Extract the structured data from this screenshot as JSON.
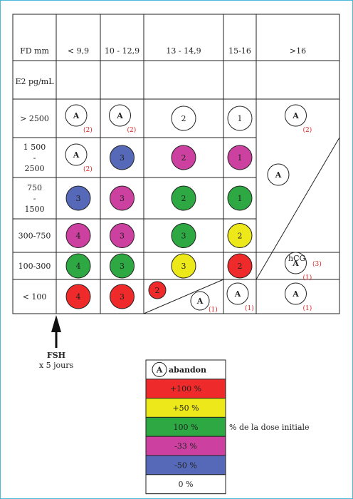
{
  "header": {
    "fd": "FD mm",
    "e2": "E2 pg/mL"
  },
  "columns": [
    "< 9,9",
    "10 - 12,9",
    "13 - 14,9",
    "15-16",
    ">16"
  ],
  "rows": [
    {
      "label": "> 2500"
    },
    {
      "label_lines": [
        "1 500",
        "-",
        "2500"
      ]
    },
    {
      "label_lines": [
        "750",
        "-",
        "1500"
      ]
    },
    {
      "label": "300-750"
    },
    {
      "label": "100-300"
    },
    {
      "label": "< 100"
    }
  ],
  "colors": {
    "red": "#ee2a2a",
    "yellow": "#ece81a",
    "green": "#2ea843",
    "magenta": "#cc40a0",
    "blue": "#5668b8",
    "white": "#ffffff"
  },
  "cells": [
    {
      "r": 0,
      "c": 0,
      "type": "abandon",
      "label": "A",
      "ref": "(2)"
    },
    {
      "r": 0,
      "c": 1,
      "type": "abandon",
      "label": "A",
      "ref": "(2)"
    },
    {
      "r": 0,
      "c": 2,
      "type": "dose",
      "color": "white",
      "label": "2"
    },
    {
      "r": 0,
      "c": 3,
      "type": "dose",
      "color": "white",
      "label": "1"
    },
    {
      "r": 0,
      "c": 4,
      "type": "abandon",
      "label": "A",
      "ref": "(2)"
    },
    {
      "r": 1,
      "c": 0,
      "type": "abandon",
      "label": "A",
      "ref": "(2)"
    },
    {
      "r": 1,
      "c": 1,
      "type": "dose",
      "color": "blue",
      "label": "3"
    },
    {
      "r": 1,
      "c": 2,
      "type": "dose",
      "color": "magenta",
      "label": "2"
    },
    {
      "r": 1,
      "c": 3,
      "type": "dose",
      "color": "magenta",
      "label": "1"
    },
    {
      "r": 2,
      "c": 0,
      "type": "dose",
      "color": "blue",
      "label": "3"
    },
    {
      "r": 2,
      "c": 1,
      "type": "dose",
      "color": "magenta",
      "label": "3"
    },
    {
      "r": 2,
      "c": 2,
      "type": "dose",
      "color": "green",
      "label": "2"
    },
    {
      "r": 2,
      "c": 3,
      "type": "dose",
      "color": "green",
      "label": "1"
    },
    {
      "r": 3,
      "c": 0,
      "type": "dose",
      "color": "magenta",
      "label": "4"
    },
    {
      "r": 3,
      "c": 1,
      "type": "dose",
      "color": "magenta",
      "label": "3"
    },
    {
      "r": 3,
      "c": 2,
      "type": "dose",
      "color": "green",
      "label": "3"
    },
    {
      "r": 3,
      "c": 3,
      "type": "dose",
      "color": "yellow",
      "label": "2"
    },
    {
      "r": 4,
      "c": 0,
      "type": "dose",
      "color": "green",
      "label": "4"
    },
    {
      "r": 4,
      "c": 1,
      "type": "dose",
      "color": "green",
      "label": "3"
    },
    {
      "r": 4,
      "c": 2,
      "type": "dose",
      "color": "yellow",
      "label": "3"
    },
    {
      "r": 4,
      "c": 3,
      "type": "dose",
      "color": "red",
      "label": "2"
    },
    {
      "r": 4,
      "c": 4,
      "type": "abandon",
      "label": "A",
      "ref": "(1)"
    },
    {
      "r": 5,
      "c": 0,
      "type": "dose",
      "color": "red",
      "label": "4"
    },
    {
      "r": 5,
      "c": 1,
      "type": "dose",
      "color": "red",
      "label": "3"
    },
    {
      "r": 5,
      "c": 3,
      "type": "abandon",
      "label": "A",
      "ref": "(1)"
    },
    {
      "r": 5,
      "c": 4,
      "type": "abandon",
      "label": "A",
      "ref": "(1)"
    }
  ],
  "split_cell": {
    "dose": {
      "color": "red",
      "label": "2"
    },
    "abandon": {
      "label": "A",
      "ref": "(1)"
    }
  },
  "merged_cell": {
    "abandon_label": "A",
    "hcg_label": "hCG",
    "hcg_ref": "(3)"
  },
  "fsh": {
    "title": "FSH",
    "subtitle": "x 5 jours"
  },
  "legend": {
    "abandon_symbol": "A",
    "abandon_label": "abandon",
    "items": [
      {
        "color": "red",
        "label": "+100 %"
      },
      {
        "color": "yellow",
        "label": "+50 %"
      },
      {
        "color": "green",
        "label": "100 %"
      },
      {
        "color": "magenta",
        "label": "-33 %"
      },
      {
        "color": "blue",
        "label": "-50 %"
      },
      {
        "color": "white",
        "label": "0 %"
      }
    ],
    "side_note": "% de la dose initiale"
  }
}
